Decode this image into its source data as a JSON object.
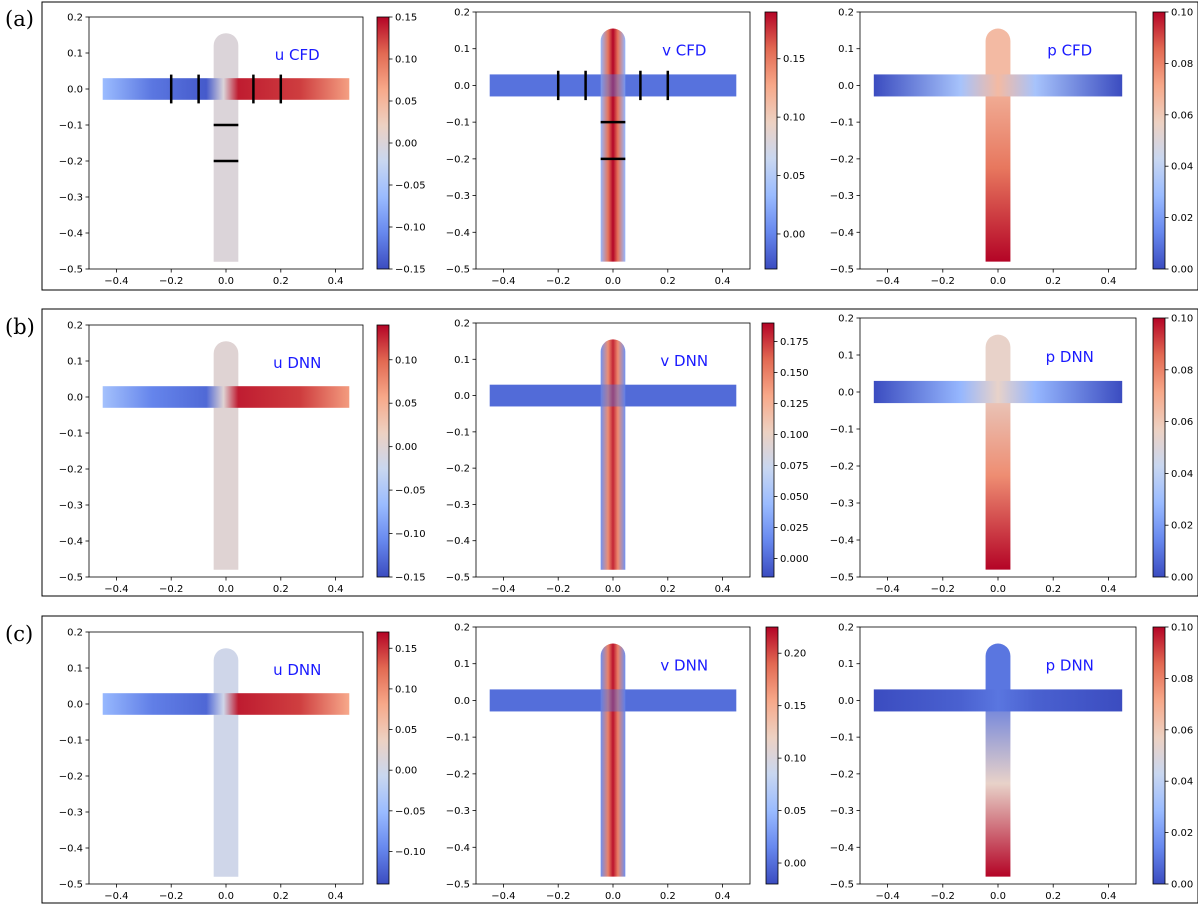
{
  "colormap": {
    "name": "coolwarm",
    "stops": [
      "#3b4cc0",
      "#6788ee",
      "#9abbff",
      "#c9d7f0",
      "#edd1c2",
      "#f7a889",
      "#e26952",
      "#b40426"
    ]
  },
  "rows": [
    {
      "label": "(a)"
    },
    {
      "label": "(b)"
    },
    {
      "label": "(c)"
    }
  ],
  "chart_data": [
    {
      "type": "heatmap",
      "row": "(a)",
      "title": "u CFD",
      "field": "u",
      "xlim": [
        -0.5,
        0.5
      ],
      "ylim": [
        -0.5,
        0.2
      ],
      "xticks": [
        -0.4,
        -0.2,
        0.0,
        0.2,
        0.4
      ],
      "yticks": [
        0.2,
        0.1,
        0.0,
        -0.1,
        -0.2,
        -0.3,
        -0.4,
        -0.5
      ],
      "colorbar": {
        "min": -0.15,
        "max": 0.15,
        "ticks": [
          0.15,
          0.1,
          0.05,
          0.0,
          -0.05,
          -0.1,
          -0.15
        ]
      },
      "values": {
        "left_arm": -0.14,
        "right_arm": 0.14,
        "stem": 0.0
      },
      "markers": {
        "vertical_x": [
          -0.2,
          -0.1,
          0.1,
          0.2
        ],
        "horizontal_y": [
          -0.1,
          -0.2
        ]
      }
    },
    {
      "type": "heatmap",
      "row": "(a)",
      "title": "v CFD",
      "field": "v",
      "xlim": [
        -0.5,
        0.5
      ],
      "ylim": [
        -0.5,
        0.2
      ],
      "xticks": [
        -0.4,
        -0.2,
        0.0,
        0.2,
        0.4
      ],
      "yticks": [
        0.2,
        0.1,
        0.0,
        -0.1,
        -0.2,
        -0.3,
        -0.4,
        -0.5
      ],
      "colorbar": {
        "min": -0.03,
        "max": 0.19,
        "ticks": [
          0.15,
          0.1,
          0.05,
          0.0
        ]
      },
      "values": {
        "arms": -0.01,
        "stem_center": 0.19,
        "stem_edge": 0.03
      },
      "markers": {
        "vertical_x": [
          -0.2,
          -0.1,
          0.1,
          0.2
        ],
        "horizontal_y": [
          -0.1,
          -0.2
        ]
      }
    },
    {
      "type": "heatmap",
      "row": "(a)",
      "title": "p CFD",
      "field": "p",
      "xlim": [
        -0.5,
        0.5
      ],
      "ylim": [
        -0.5,
        0.2
      ],
      "xticks": [
        -0.4,
        -0.2,
        0.0,
        0.2,
        0.4
      ],
      "yticks": [
        0.2,
        0.1,
        0.0,
        -0.1,
        -0.2,
        -0.3,
        -0.4,
        -0.5
      ],
      "colorbar": {
        "min": 0.0,
        "max": 0.1,
        "ticks": [
          0.1,
          0.08,
          0.06,
          0.04,
          0.02,
          0.0
        ]
      },
      "values": {
        "arm_tip": 0.0,
        "junction": 0.065,
        "stem_bottom": 0.1
      }
    },
    {
      "type": "heatmap",
      "row": "(b)",
      "title": "u DNN",
      "field": "u",
      "xlim": [
        -0.5,
        0.5
      ],
      "ylim": [
        -0.5,
        0.2
      ],
      "xticks": [
        -0.4,
        -0.2,
        0.0,
        0.2,
        0.4
      ],
      "yticks": [
        0.2,
        0.1,
        0.0,
        -0.1,
        -0.2,
        -0.3,
        -0.4,
        -0.5
      ],
      "colorbar": {
        "min": -0.15,
        "max": 0.14,
        "ticks": [
          0.1,
          0.05,
          0.0,
          -0.05,
          -0.1,
          -0.15
        ]
      },
      "values": {
        "left_arm": -0.13,
        "right_arm": 0.13,
        "stem": 0.0
      }
    },
    {
      "type": "heatmap",
      "row": "(b)",
      "title": "v DNN",
      "field": "v",
      "xlim": [
        -0.5,
        0.5
      ],
      "ylim": [
        -0.5,
        0.2
      ],
      "xticks": [
        -0.4,
        -0.2,
        0.0,
        0.2,
        0.4
      ],
      "yticks": [
        0.2,
        0.1,
        0.0,
        -0.1,
        -0.2,
        -0.3,
        -0.4,
        -0.5
      ],
      "colorbar": {
        "min": -0.015,
        "max": 0.19,
        "ticks": [
          0.175,
          0.15,
          0.125,
          0.1,
          0.075,
          0.05,
          0.025,
          0.0
        ]
      },
      "values": {
        "arms": 0.0,
        "stem_center": 0.18,
        "stem_edge": 0.02
      }
    },
    {
      "type": "heatmap",
      "row": "(b)",
      "title": "p DNN",
      "field": "p",
      "xlim": [
        -0.5,
        0.5
      ],
      "ylim": [
        -0.5,
        0.2
      ],
      "xticks": [
        -0.4,
        -0.2,
        0.0,
        0.2,
        0.4
      ],
      "yticks": [
        0.2,
        0.1,
        0.0,
        -0.1,
        -0.2,
        -0.3,
        -0.4,
        -0.5
      ],
      "colorbar": {
        "min": 0.0,
        "max": 0.1,
        "ticks": [
          0.1,
          0.08,
          0.06,
          0.04,
          0.02,
          0.0
        ]
      },
      "values": {
        "arm_tip": 0.0,
        "junction": 0.055,
        "stem_bottom": 0.1
      }
    },
    {
      "type": "heatmap",
      "row": "(c)",
      "title": "u DNN",
      "field": "u",
      "xlim": [
        -0.5,
        0.5
      ],
      "ylim": [
        -0.5,
        0.2
      ],
      "xticks": [
        -0.4,
        -0.2,
        0.0,
        0.2,
        0.4
      ],
      "yticks": [
        0.2,
        0.1,
        0.0,
        -0.1,
        -0.2,
        -0.3,
        -0.4,
        -0.5
      ],
      "colorbar": {
        "min": -0.14,
        "max": 0.17,
        "ticks": [
          0.15,
          0.1,
          0.05,
          0.0,
          -0.05,
          -0.1
        ]
      },
      "values": {
        "left_arm": -0.12,
        "right_arm": 0.16,
        "stem": 0.0
      }
    },
    {
      "type": "heatmap",
      "row": "(c)",
      "title": "v DNN",
      "field": "v",
      "xlim": [
        -0.5,
        0.5
      ],
      "ylim": [
        -0.5,
        0.2
      ],
      "xticks": [
        -0.4,
        -0.2,
        0.0,
        0.2,
        0.4
      ],
      "yticks": [
        0.2,
        0.1,
        0.0,
        -0.1,
        -0.2,
        -0.3,
        -0.4,
        -0.5
      ],
      "colorbar": {
        "min": -0.02,
        "max": 0.225,
        "ticks": [
          0.2,
          0.15,
          0.1,
          0.05,
          0.0
        ]
      },
      "values": {
        "arms": 0.0,
        "stem_center": 0.22,
        "stem_edge": 0.02
      }
    },
    {
      "type": "heatmap",
      "row": "(c)",
      "title": "p DNN",
      "field": "p",
      "xlim": [
        -0.5,
        0.5
      ],
      "ylim": [
        -0.5,
        0.2
      ],
      "xticks": [
        -0.4,
        -0.2,
        0.0,
        0.2,
        0.4
      ],
      "yticks": [
        0.2,
        0.1,
        0.0,
        -0.1,
        -0.2,
        -0.3,
        -0.4,
        -0.5
      ],
      "colorbar": {
        "min": 0.0,
        "max": 0.1,
        "ticks": [
          0.1,
          0.08,
          0.06,
          0.04,
          0.02,
          0.0
        ]
      },
      "values": {
        "arm_tip": 0.0,
        "junction": 0.01,
        "stem_bottom": 0.1
      }
    }
  ]
}
